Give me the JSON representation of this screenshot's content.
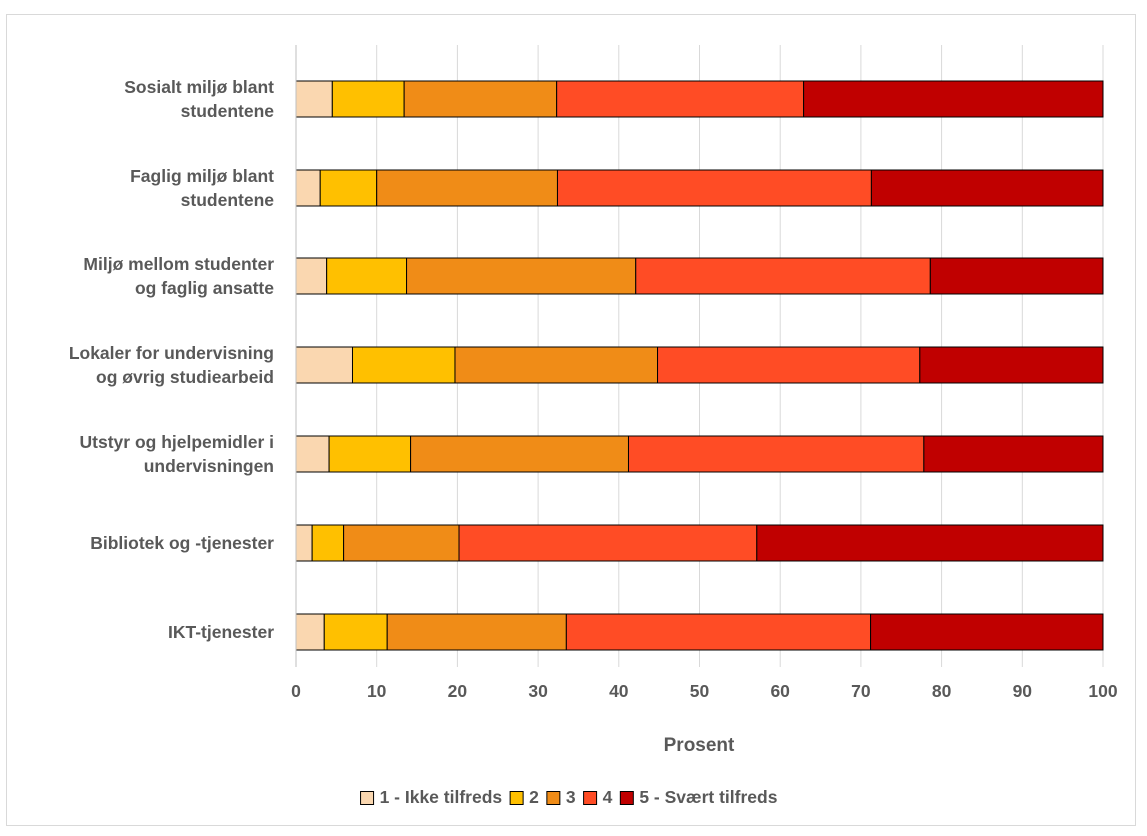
{
  "chart_data": {
    "type": "bar",
    "orientation": "horizontal",
    "stacked": true,
    "categories": [
      [
        "Sosialt miljø blant",
        "studentene"
      ],
      [
        "Faglig miljø blant",
        "studentene"
      ],
      [
        "Miljø mellom studenter",
        "og faglig ansatte"
      ],
      [
        "Lokaler for undervisning",
        "og øvrig studiearbeid"
      ],
      [
        "Utstyr og hjelpemidler i",
        "undervisningen"
      ],
      [
        "Bibliotek og -tjenester"
      ],
      [
        "IKT-tjenester"
      ]
    ],
    "series": [
      {
        "name": "1 - Ikke tilfreds",
        "color": "#fad7b0",
        "values": [
          4.5,
          3.0,
          3.8,
          7.0,
          4.1,
          2.0,
          3.5
        ]
      },
      {
        "name": "2",
        "color": "#ffc000",
        "values": [
          8.9,
          7.0,
          9.9,
          12.7,
          10.1,
          3.9,
          7.8
        ]
      },
      {
        "name": "3",
        "color": "#f08c17",
        "values": [
          18.9,
          22.4,
          28.4,
          25.1,
          27.0,
          14.3,
          22.2
        ]
      },
      {
        "name": "4",
        "color": "#ff4c25",
        "values": [
          30.6,
          38.9,
          36.5,
          32.5,
          36.6,
          36.9,
          37.7
        ]
      },
      {
        "name": "5 - Svært tilfreds",
        "color": "#c00000",
        "values": [
          37.1,
          28.7,
          21.4,
          22.7,
          22.2,
          42.9,
          28.8
        ]
      }
    ],
    "xlabel": "Prosent",
    "xlim": [
      0,
      100
    ],
    "xticks": [
      "0",
      "10",
      "20",
      "30",
      "40",
      "50",
      "60",
      "70",
      "80",
      "90",
      "100"
    ],
    "grid": true,
    "legend_position": "bottom"
  }
}
